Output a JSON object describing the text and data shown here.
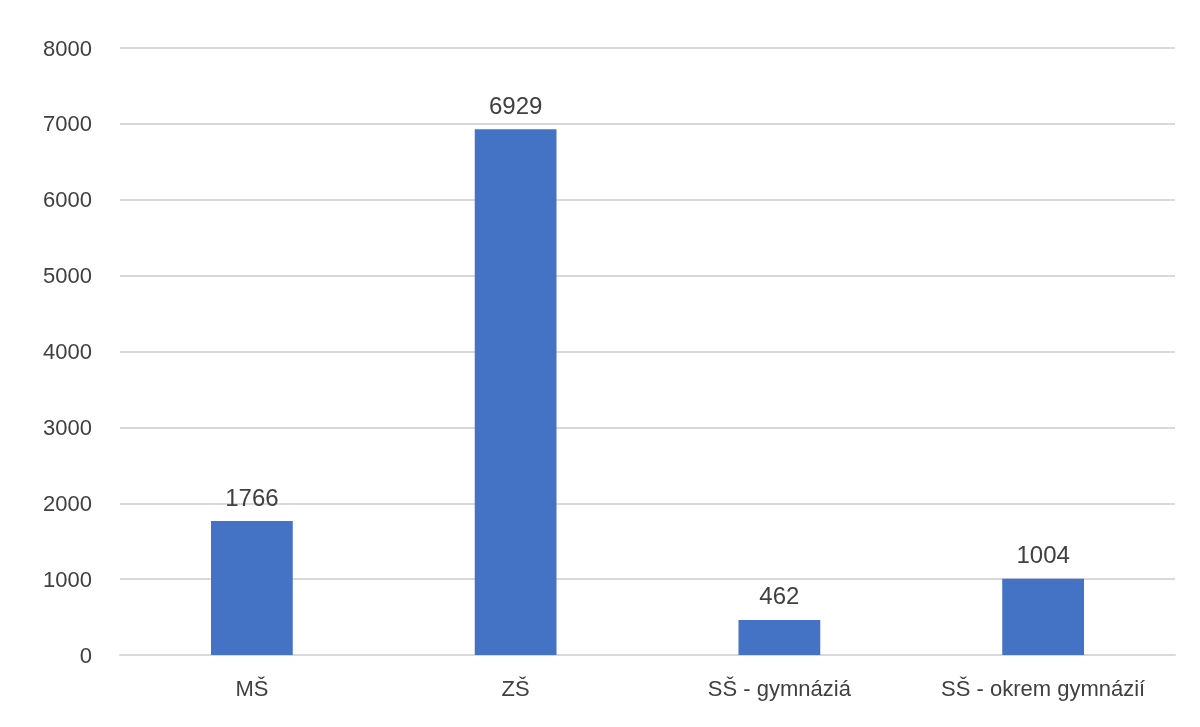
{
  "chart_data": {
    "type": "bar",
    "categories": [
      "MŠ",
      "ZŠ",
      "SŠ - gymnáziá",
      "SŠ - okrem gymnázií"
    ],
    "values": [
      1766,
      6929,
      462,
      1004
    ],
    "color": "#4472c4",
    "ylim": [
      0,
      8000
    ],
    "yticks": [
      0,
      1000,
      2000,
      3000,
      4000,
      5000,
      6000,
      7000,
      8000
    ],
    "grid": "y",
    "data_labels": true
  }
}
